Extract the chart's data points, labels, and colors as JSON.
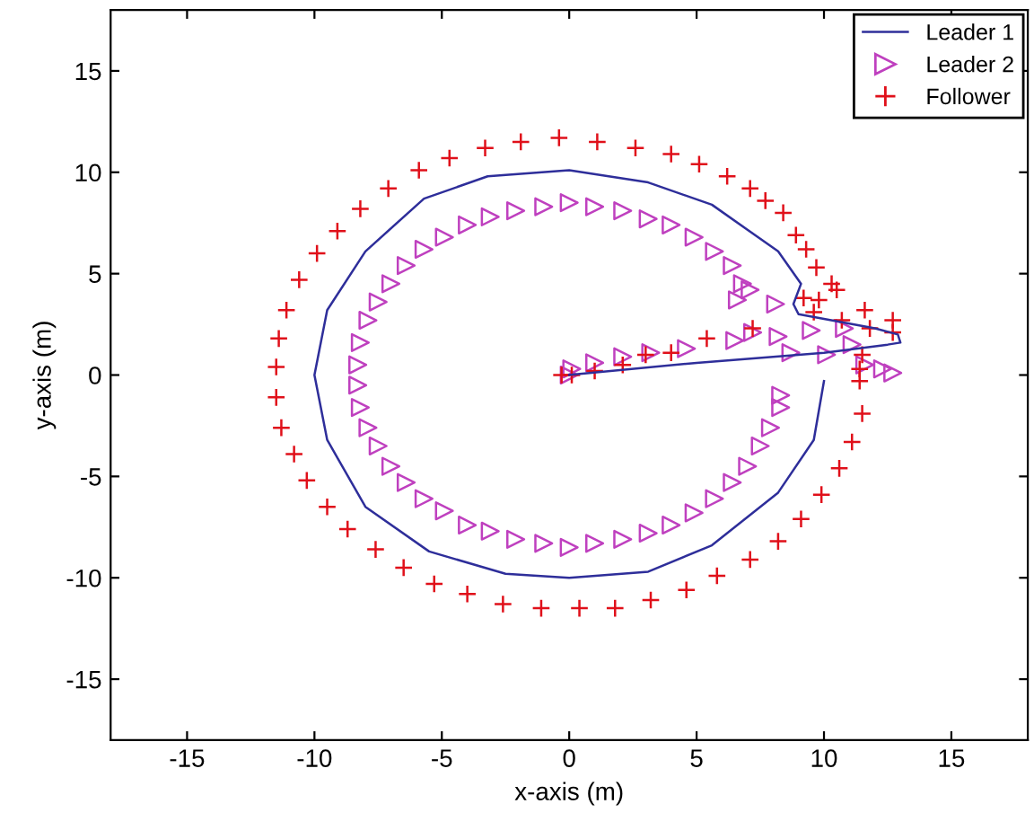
{
  "chart_data": {
    "type": "line",
    "xlabel": "x-axis (m)",
    "ylabel": "y-axis (m)",
    "xlim": [
      -18,
      18
    ],
    "ylim": [
      -18,
      18
    ],
    "xticks": [
      -15,
      -10,
      -5,
      0,
      5,
      10,
      15
    ],
    "yticks": [
      -15,
      -10,
      -5,
      0,
      5,
      10,
      15
    ],
    "grid": false,
    "legend": "top right",
    "series": [
      {
        "name": "Leader 1",
        "color": "#2e2e9a",
        "marker": "none",
        "line_style": "solid",
        "x": [
          10,
          9.6,
          8.2,
          5.6,
          3.1,
          0,
          -2.5,
          -5.5,
          -8.0,
          -9.5,
          -10,
          -9.5,
          -8.0,
          -5.7,
          -3.2,
          0,
          3.1,
          5.6,
          8.2,
          9.1,
          8.8,
          9.0,
          12,
          12.9,
          13.0,
          12.5,
          10,
          5,
          0
        ],
        "values": [
          -0.3,
          -3.2,
          -5.8,
          -8.4,
          -9.7,
          -10,
          -9.8,
          -8.7,
          -6.5,
          -3.2,
          0,
          3.2,
          6.1,
          8.7,
          9.8,
          10.1,
          9.5,
          8.4,
          6.1,
          4.5,
          3.5,
          3.0,
          2.3,
          2.0,
          1.6,
          1.5,
          1.1,
          0.6,
          0
        ]
      },
      {
        "name": "Leader 2",
        "type": "scatter",
        "color": "#bf40bf",
        "marker": "triangle",
        "x": [
          8.3,
          8.3,
          7.9,
          7.5,
          7.0,
          6.4,
          5.7,
          4.9,
          4.0,
          3.1,
          2.1,
          1.0,
          0,
          -1.0,
          -2.1,
          -3.1,
          -4.0,
          -4.9,
          -5.7,
          -6.4,
          -7.0,
          -7.5,
          -7.9,
          -8.2,
          -8.3,
          -8.3,
          -8.2,
          -7.9,
          -7.5,
          -7.0,
          -6.4,
          -5.7,
          -4.9,
          -4.0,
          -3.1,
          -2.1,
          -1.0,
          0,
          1.0,
          2.1,
          3.1,
          4.0,
          4.9,
          5.7,
          6.4,
          6.8,
          7.1,
          6.6,
          8.1,
          9.5,
          10.8,
          11.1,
          11.6,
          12.3,
          12.7,
          10.1,
          8.7,
          8.2,
          7.2,
          6.5,
          4.6,
          3.2,
          2.1,
          1.0,
          0.1,
          0
        ],
        "values": [
          -1.0,
          -1.6,
          -2.6,
          -3.5,
          -4.5,
          -5.3,
          -6.1,
          -6.8,
          -7.4,
          -7.8,
          -8.1,
          -8.3,
          -8.5,
          -8.3,
          -8.1,
          -7.7,
          -7.4,
          -6.7,
          -6.1,
          -5.3,
          -4.5,
          -3.5,
          -2.6,
          -1.6,
          -0.5,
          0.5,
          1.6,
          2.7,
          3.6,
          4.5,
          5.4,
          6.2,
          6.8,
          7.4,
          7.8,
          8.1,
          8.3,
          8.5,
          8.3,
          8.1,
          7.7,
          7.4,
          6.8,
          6.1,
          5.4,
          4.5,
          4.2,
          3.7,
          3.5,
          2.2,
          2.3,
          1.5,
          0.5,
          0.3,
          0.1,
          1.0,
          1.1,
          1.9,
          2.1,
          1.7,
          1.3,
          1.1,
          0.9,
          0.6,
          0.3,
          0
        ]
      },
      {
        "name": "Follower",
        "type": "scatter",
        "color": "#e0101a",
        "marker": "cross",
        "x": [
          11.4,
          11.5,
          11.1,
          10.6,
          9.9,
          9.1,
          8.2,
          7.1,
          5.8,
          4.6,
          3.2,
          1.8,
          0.4,
          -1.1,
          -2.6,
          -4.0,
          -5.3,
          -6.5,
          -7.6,
          -8.7,
          -9.5,
          -10.3,
          -10.8,
          -11.3,
          -11.5,
          -11.5,
          -11.4,
          -11.1,
          -10.6,
          -9.9,
          -9.1,
          -8.2,
          -7.1,
          -5.9,
          -4.7,
          -3.3,
          -1.9,
          -0.4,
          1.1,
          2.6,
          4.0,
          5.1,
          6.2,
          7.1,
          7.7,
          8.4,
          8.9,
          9.3,
          9.7,
          10.3,
          10.5,
          9.8,
          9.2,
          9.6,
          10.7,
          11.6,
          12.7,
          12.7,
          11.8,
          11.5,
          11.4,
          7.2,
          5.4,
          4.0,
          3.0,
          2.1,
          1.0,
          0.1,
          -0.3
        ],
        "values": [
          -0.3,
          -1.9,
          -3.3,
          -4.6,
          -5.9,
          -7.1,
          -8.2,
          -9.1,
          -9.9,
          -10.6,
          -11.1,
          -11.5,
          -11.5,
          -11.5,
          -11.3,
          -10.8,
          -10.3,
          -9.5,
          -8.6,
          -7.6,
          -6.5,
          -5.2,
          -3.9,
          -2.6,
          -1.1,
          0.4,
          1.8,
          3.2,
          4.7,
          6.0,
          7.1,
          8.2,
          9.2,
          10.1,
          10.7,
          11.2,
          11.5,
          11.7,
          11.5,
          11.2,
          10.9,
          10.4,
          9.8,
          9.2,
          8.6,
          8.0,
          6.9,
          6.2,
          5.3,
          4.5,
          4.2,
          3.7,
          3.8,
          3.1,
          2.7,
          3.2,
          2.7,
          2.1,
          2.3,
          1.0,
          0.3,
          2.3,
          1.8,
          1.1,
          1.0,
          0.5,
          0.2,
          0,
          0
        ]
      }
    ]
  }
}
